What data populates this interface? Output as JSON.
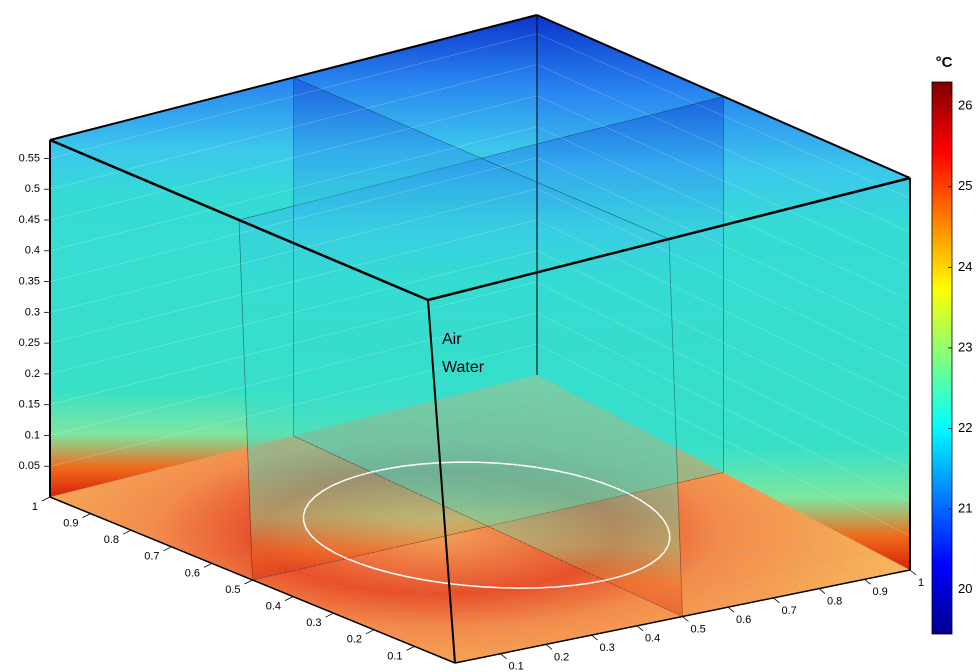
{
  "chart_data": {
    "type": "volume-slices",
    "annotations": [
      "Air",
      "Water"
    ],
    "xlim": [
      0,
      1
    ],
    "xticks": [
      0.1,
      0.2,
      0.3,
      0.4,
      0.5,
      0.6,
      0.7,
      0.8,
      0.9,
      1
    ],
    "ylim": [
      0,
      1
    ],
    "yticks": [
      0.1,
      0.2,
      0.3,
      0.4,
      0.5,
      0.6,
      0.7,
      0.8,
      0.9,
      1
    ],
    "zlim": [
      0,
      0.58
    ],
    "zticks": [
      0.05,
      0.1,
      0.15,
      0.2,
      0.25,
      0.3,
      0.35,
      0.4,
      0.45,
      0.5,
      0.55
    ],
    "colorbar": {
      "title": "°C",
      "clim": [
        19.45,
        26.3
      ],
      "ticks": [
        20,
        21,
        22,
        23,
        24,
        25,
        26
      ]
    }
  }
}
